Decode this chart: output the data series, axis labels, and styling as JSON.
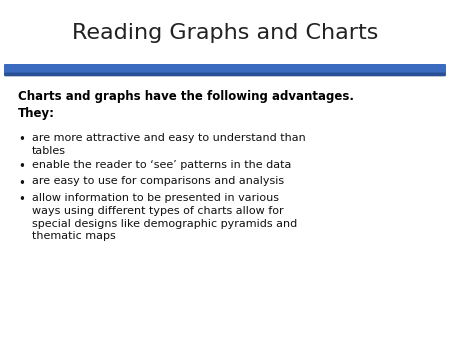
{
  "title": "Reading Graphs and Charts",
  "title_fontsize": 16,
  "title_color": "#222222",
  "background_color": "#ffffff",
  "divider_color": "#3a6bbf",
  "divider_shadow": "#1e3f7a",
  "heading_text": "Charts and graphs have the following advantages.\nThey:",
  "heading_fontsize": 8.5,
  "heading_color": "#000000",
  "bullet_items": [
    "are more attractive and easy to understand than\ntables",
    "enable the reader to ‘see’ patterns in the data",
    "are easy to use for comparisons and analysis",
    "allow information to be presented in various\nways using different types of charts allow for\nspecial designs like demographic pyramids and\nthematic maps"
  ],
  "bullet_fontsize": 8.0,
  "bullet_color": "#111111",
  "bullet_char": "•"
}
